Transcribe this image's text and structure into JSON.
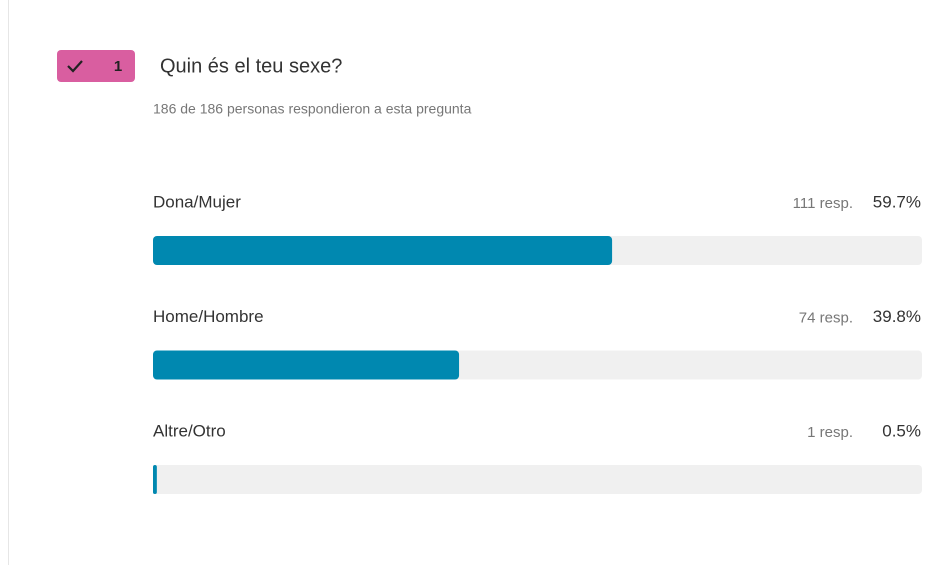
{
  "question": {
    "number": 1,
    "title": "Quin és el teu sexe?",
    "subtitle": "186 de 186 personas respondieron a esta pregunta"
  },
  "chart_data": {
    "type": "bar",
    "orientation": "horizontal",
    "categories": [
      "Dona/Mujer",
      "Home/Hombre",
      "Altre/Otro"
    ],
    "values": [
      59.7,
      39.8,
      0.5
    ],
    "value_labels": [
      "59.7%",
      "39.8%",
      "0.5%"
    ],
    "response_labels": [
      "111 resp.",
      "74 resp.",
      "1 resp."
    ],
    "xlim": [
      0,
      100
    ],
    "color": "#0088b0",
    "track_color": "#f0f0f0"
  }
}
